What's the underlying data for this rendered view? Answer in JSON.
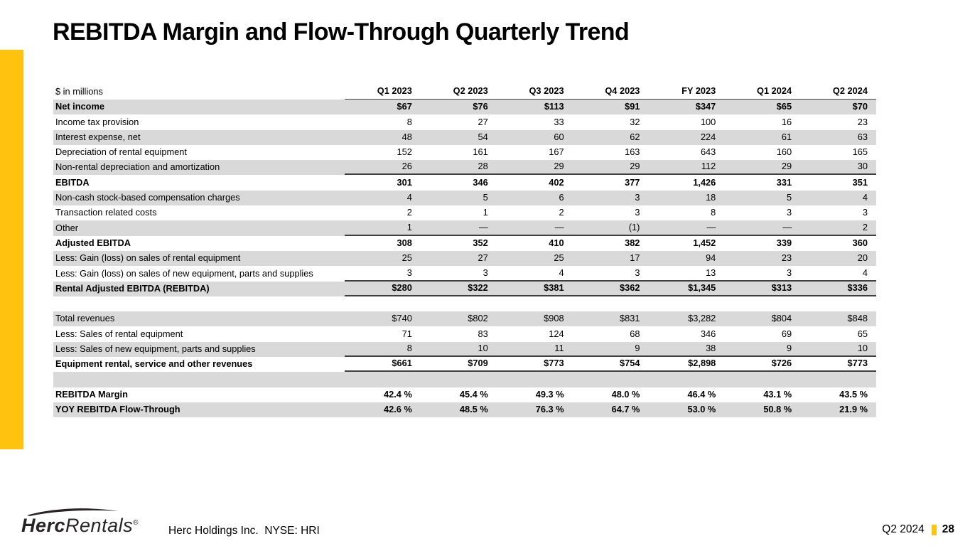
{
  "slide": {
    "title": "REBITDA Margin and Flow-Through Quarterly Trend",
    "accent_color": "#FFC20E",
    "shade_color": "#D9D9D9"
  },
  "table": {
    "unit_label": "$ in millions",
    "columns": [
      "Q1 2023",
      "Q2 2023",
      "Q3 2023",
      "Q4 2023",
      "FY 2023",
      "Q1 2024",
      "Q2 2024"
    ],
    "rows": [
      {
        "label": "Net income",
        "bold": true,
        "shaded": true,
        "values": [
          "$67",
          "$76",
          "$113",
          "$91",
          "$347",
          "$65",
          "$70"
        ]
      },
      {
        "label": "Income tax provision",
        "values": [
          "8",
          "27",
          "33",
          "32",
          "100",
          "16",
          "23"
        ]
      },
      {
        "label": "Interest expense, net",
        "shaded": true,
        "values": [
          "48",
          "54",
          "60",
          "62",
          "224",
          "61",
          "63"
        ]
      },
      {
        "label": "Depreciation of rental equipment",
        "values": [
          "152",
          "161",
          "167",
          "163",
          "643",
          "160",
          "165"
        ]
      },
      {
        "label": "Non-rental depreciation and amortization",
        "shaded": true,
        "rule_below": true,
        "values": [
          "26",
          "28",
          "29",
          "29",
          "112",
          "29",
          "30"
        ]
      },
      {
        "label": "EBITDA",
        "bold": true,
        "values": [
          "301",
          "346",
          "402",
          "377",
          "1,426",
          "331",
          "351"
        ]
      },
      {
        "label": "Non-cash stock-based compensation charges",
        "shaded": true,
        "values": [
          "4",
          "5",
          "6",
          "3",
          "18",
          "5",
          "4"
        ]
      },
      {
        "label": "Transaction related costs",
        "values": [
          "2",
          "1",
          "2",
          "3",
          "8",
          "3",
          "3"
        ]
      },
      {
        "label": "Other",
        "shaded": true,
        "rule_below": true,
        "values": [
          "1",
          "—",
          "—",
          "(1)",
          "—",
          "—",
          "2"
        ]
      },
      {
        "label": "Adjusted EBITDA",
        "bold": true,
        "values": [
          "308",
          "352",
          "410",
          "382",
          "1,452",
          "339",
          "360"
        ]
      },
      {
        "label": "Less: Gain (loss) on sales of rental equipment",
        "shaded": true,
        "values": [
          "25",
          "27",
          "25",
          "17",
          "94",
          "23",
          "20"
        ]
      },
      {
        "label": "Less: Gain (loss) on sales of new equipment, parts and supplies",
        "rule_below": true,
        "values": [
          "3",
          "3",
          "4",
          "3",
          "13",
          "3",
          "4"
        ]
      },
      {
        "label": "Rental Adjusted EBITDA (REBITDA)",
        "bold": true,
        "shaded": true,
        "rule_below": true,
        "values": [
          "$280",
          "$322",
          "$381",
          "$362",
          "$1,345",
          "$313",
          "$336"
        ]
      },
      {
        "label": "",
        "spacer": true,
        "values": [
          "",
          "",
          "",
          "",
          "",
          "",
          ""
        ]
      },
      {
        "label": "Total revenues",
        "shaded": true,
        "values": [
          "$740",
          "$802",
          "$908",
          "$831",
          "$3,282",
          "$804",
          "$848"
        ]
      },
      {
        "label": "Less: Sales of rental equipment",
        "values": [
          "71",
          "83",
          "124",
          "68",
          "346",
          "69",
          "65"
        ]
      },
      {
        "label": "Less: Sales of new equipment, parts and supplies",
        "shaded": true,
        "rule_below": true,
        "values": [
          "8",
          "10",
          "11",
          "9",
          "38",
          "9",
          "10"
        ]
      },
      {
        "label": "Equipment rental, service and other revenues",
        "bold": true,
        "rule_below": true,
        "values": [
          "$661",
          "$709",
          "$773",
          "$754",
          "$2,898",
          "$726",
          "$773"
        ]
      },
      {
        "label": "",
        "spacer": true,
        "shaded": true,
        "values": [
          "",
          "",
          "",
          "",
          "",
          "",
          ""
        ]
      },
      {
        "label": "REBITDA Margin",
        "bold": true,
        "values": [
          "42.4 %",
          "45.4 %",
          "49.3 %",
          "48.0 %",
          "46.4 %",
          "43.1 %",
          "43.5 %"
        ]
      },
      {
        "label": "YOY REBITDA Flow-Through",
        "bold": true,
        "shaded": true,
        "values": [
          "42.6 %",
          "48.5 %",
          "76.3 %",
          "64.7 %",
          "53.0 %",
          "50.8 %",
          "21.9 %"
        ]
      }
    ]
  },
  "footer": {
    "logo_text_bold": "Herc",
    "logo_text_light": "Rentals",
    "logo_reg": "®",
    "company": "Herc Holdings Inc.  NYSE: HRI",
    "period": "Q2 2024",
    "page_number": "28"
  }
}
